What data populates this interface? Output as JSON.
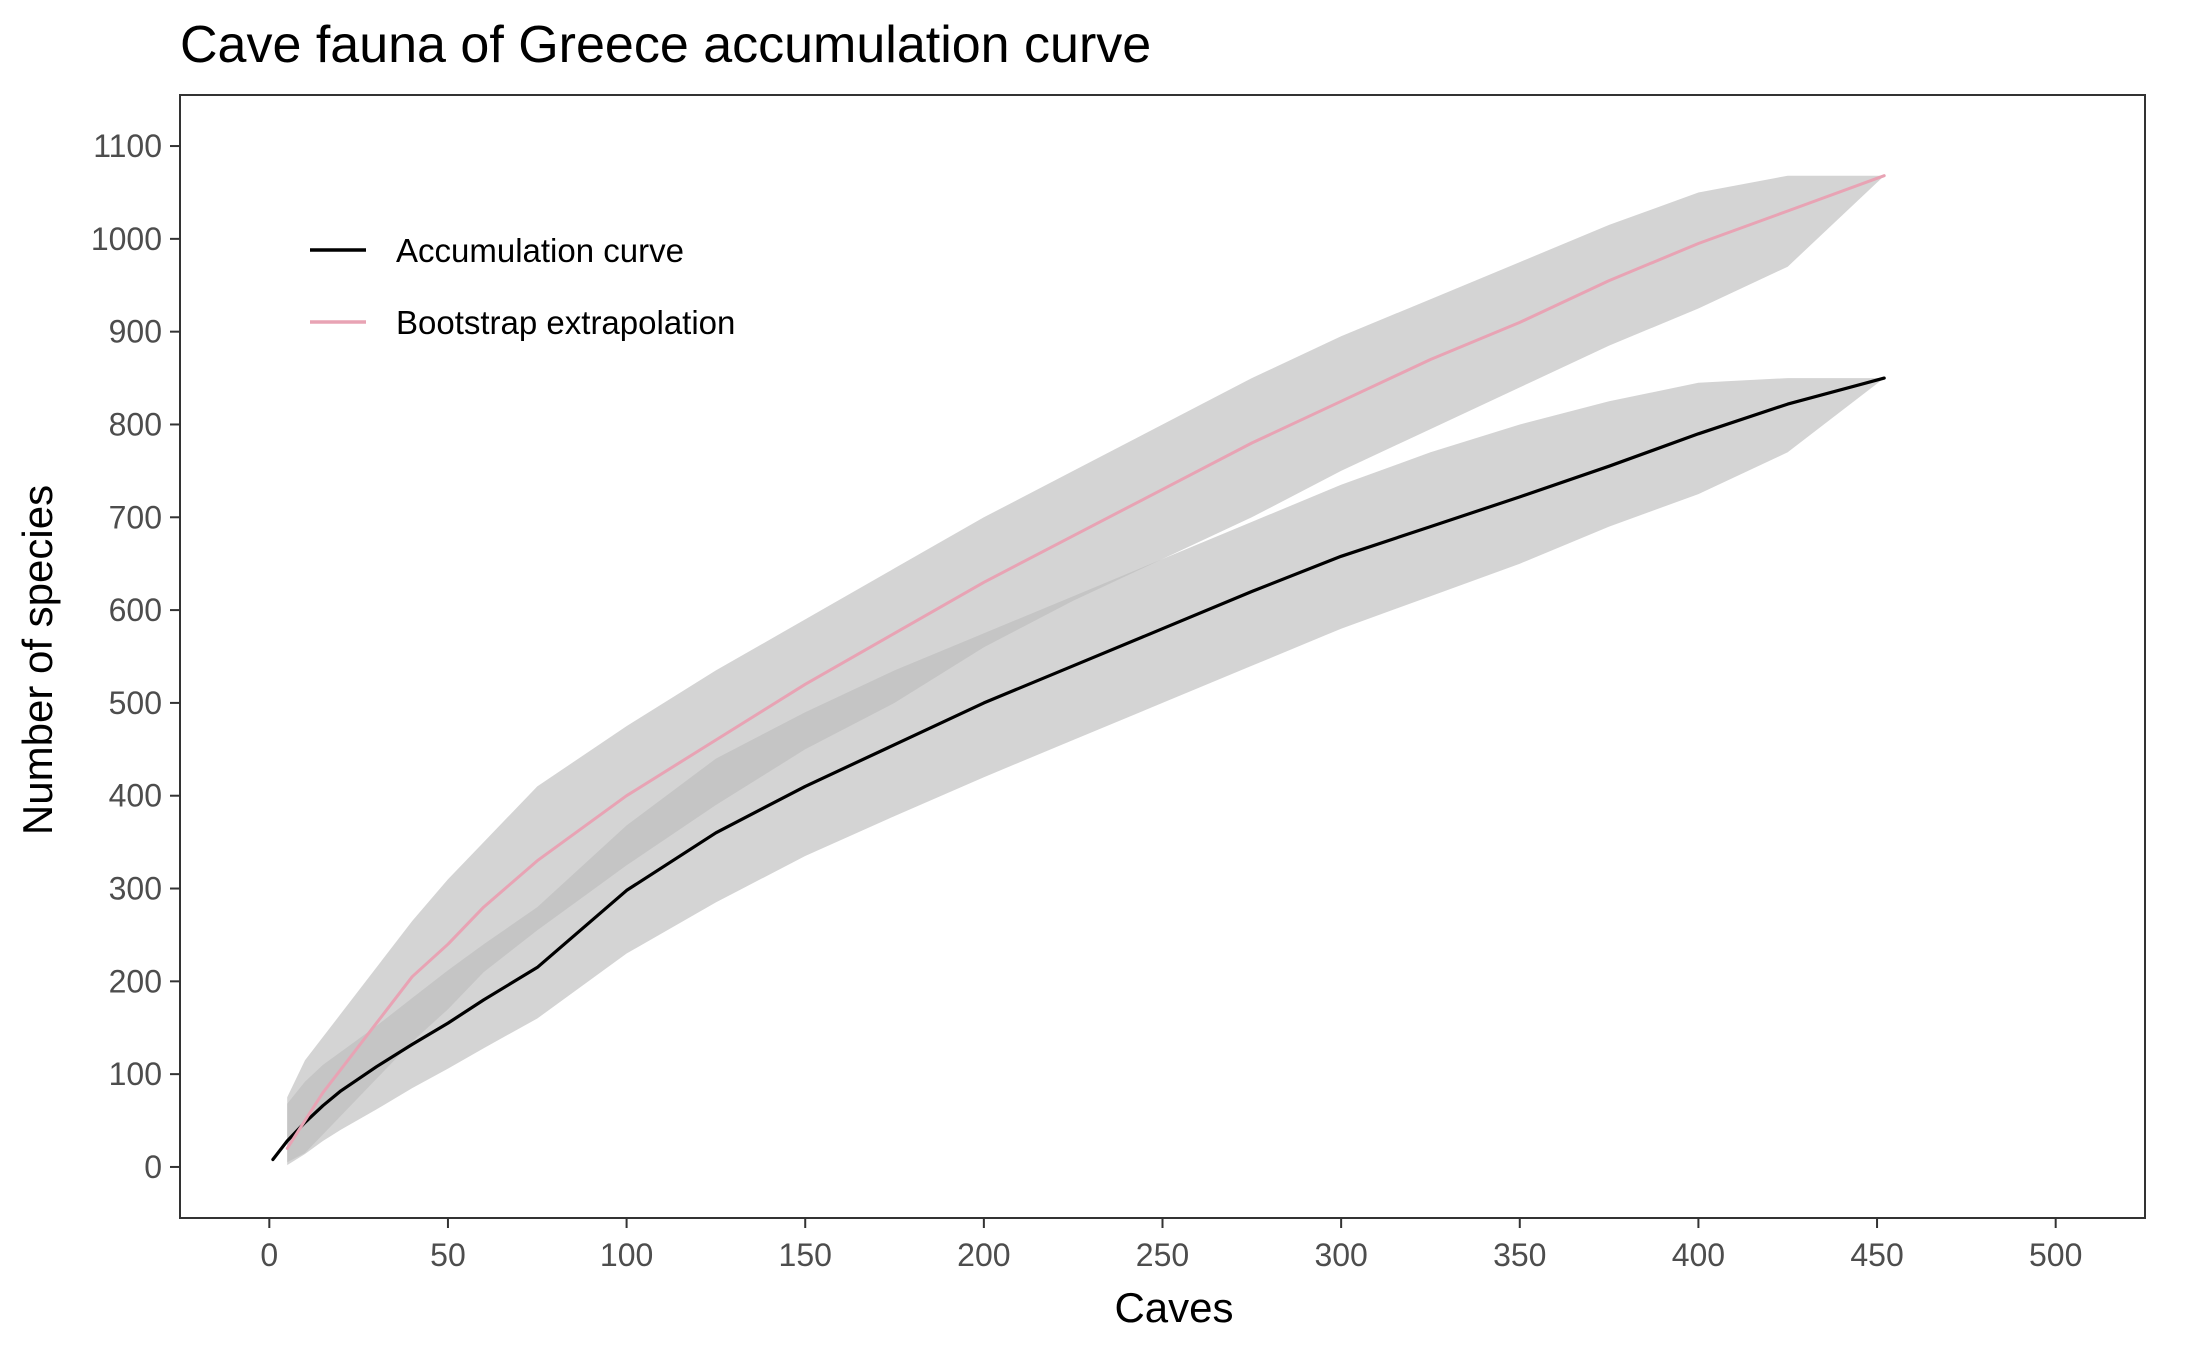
{
  "chart_data": {
    "type": "line",
    "title": "Cave fauna of Greece accumulation curve",
    "xlabel": "Caves",
    "ylabel": "Number of species",
    "xlim": [
      -25,
      525
    ],
    "ylim": [
      -55,
      1155
    ],
    "xticks": [
      0,
      50,
      100,
      150,
      200,
      250,
      300,
      350,
      400,
      450,
      500
    ],
    "yticks": [
      0,
      100,
      200,
      300,
      400,
      500,
      600,
      700,
      800,
      900,
      1000,
      1100
    ],
    "grid": false,
    "legend": {
      "position": "top-left"
    },
    "colors": {
      "accumulation": "#000000",
      "bootstrap": "#e8a3b4",
      "ribbon": "#bdbdbd",
      "panel_border": "#333333",
      "tick_label": "#4d4d4d"
    },
    "series": [
      {
        "name": "Accumulation curve",
        "color": "#000000",
        "x": [
          1,
          5,
          10,
          15,
          20,
          30,
          40,
          50,
          60,
          75,
          100,
          125,
          150,
          175,
          200,
          225,
          250,
          275,
          300,
          325,
          350,
          375,
          400,
          425,
          452
        ],
        "y": [
          8,
          28,
          48,
          66,
          82,
          108,
          132,
          155,
          180,
          215,
          298,
          360,
          410,
          455,
          500,
          540,
          580,
          620,
          658,
          690,
          722,
          755,
          790,
          822,
          850
        ],
        "lower": [
          null,
          2,
          14,
          28,
          40,
          62,
          85,
          106,
          128,
          160,
          230,
          285,
          335,
          378,
          420,
          460,
          500,
          540,
          580,
          615,
          650,
          690,
          725,
          770,
          850
        ],
        "upper": [
          null,
          68,
          92,
          110,
          124,
          152,
          182,
          212,
          240,
          280,
          368,
          440,
          490,
          535,
          575,
          615,
          655,
          695,
          735,
          770,
          800,
          825,
          845,
          850,
          850
        ]
      },
      {
        "name": "Bootstrap extrapolation",
        "color": "#e8a3b4",
        "x": [
          5,
          10,
          15,
          20,
          30,
          40,
          50,
          60,
          75,
          100,
          125,
          150,
          175,
          200,
          225,
          250,
          275,
          300,
          325,
          350,
          375,
          400,
          425,
          452
        ],
        "y": [
          20,
          50,
          80,
          105,
          155,
          205,
          240,
          280,
          330,
          400,
          460,
          520,
          575,
          630,
          680,
          730,
          780,
          825,
          870,
          910,
          955,
          995,
          1030,
          1068
        ],
        "lower": [
          5,
          15,
          35,
          55,
          95,
          135,
          170,
          210,
          255,
          325,
          390,
          450,
          500,
          560,
          610,
          655,
          700,
          750,
          795,
          840,
          885,
          925,
          970,
          1068
        ],
        "upper": [
          75,
          115,
          140,
          165,
          215,
          265,
          310,
          350,
          410,
          475,
          535,
          590,
          645,
          700,
          750,
          800,
          850,
          895,
          935,
          975,
          1015,
          1050,
          1068,
          1068
        ]
      }
    ]
  }
}
